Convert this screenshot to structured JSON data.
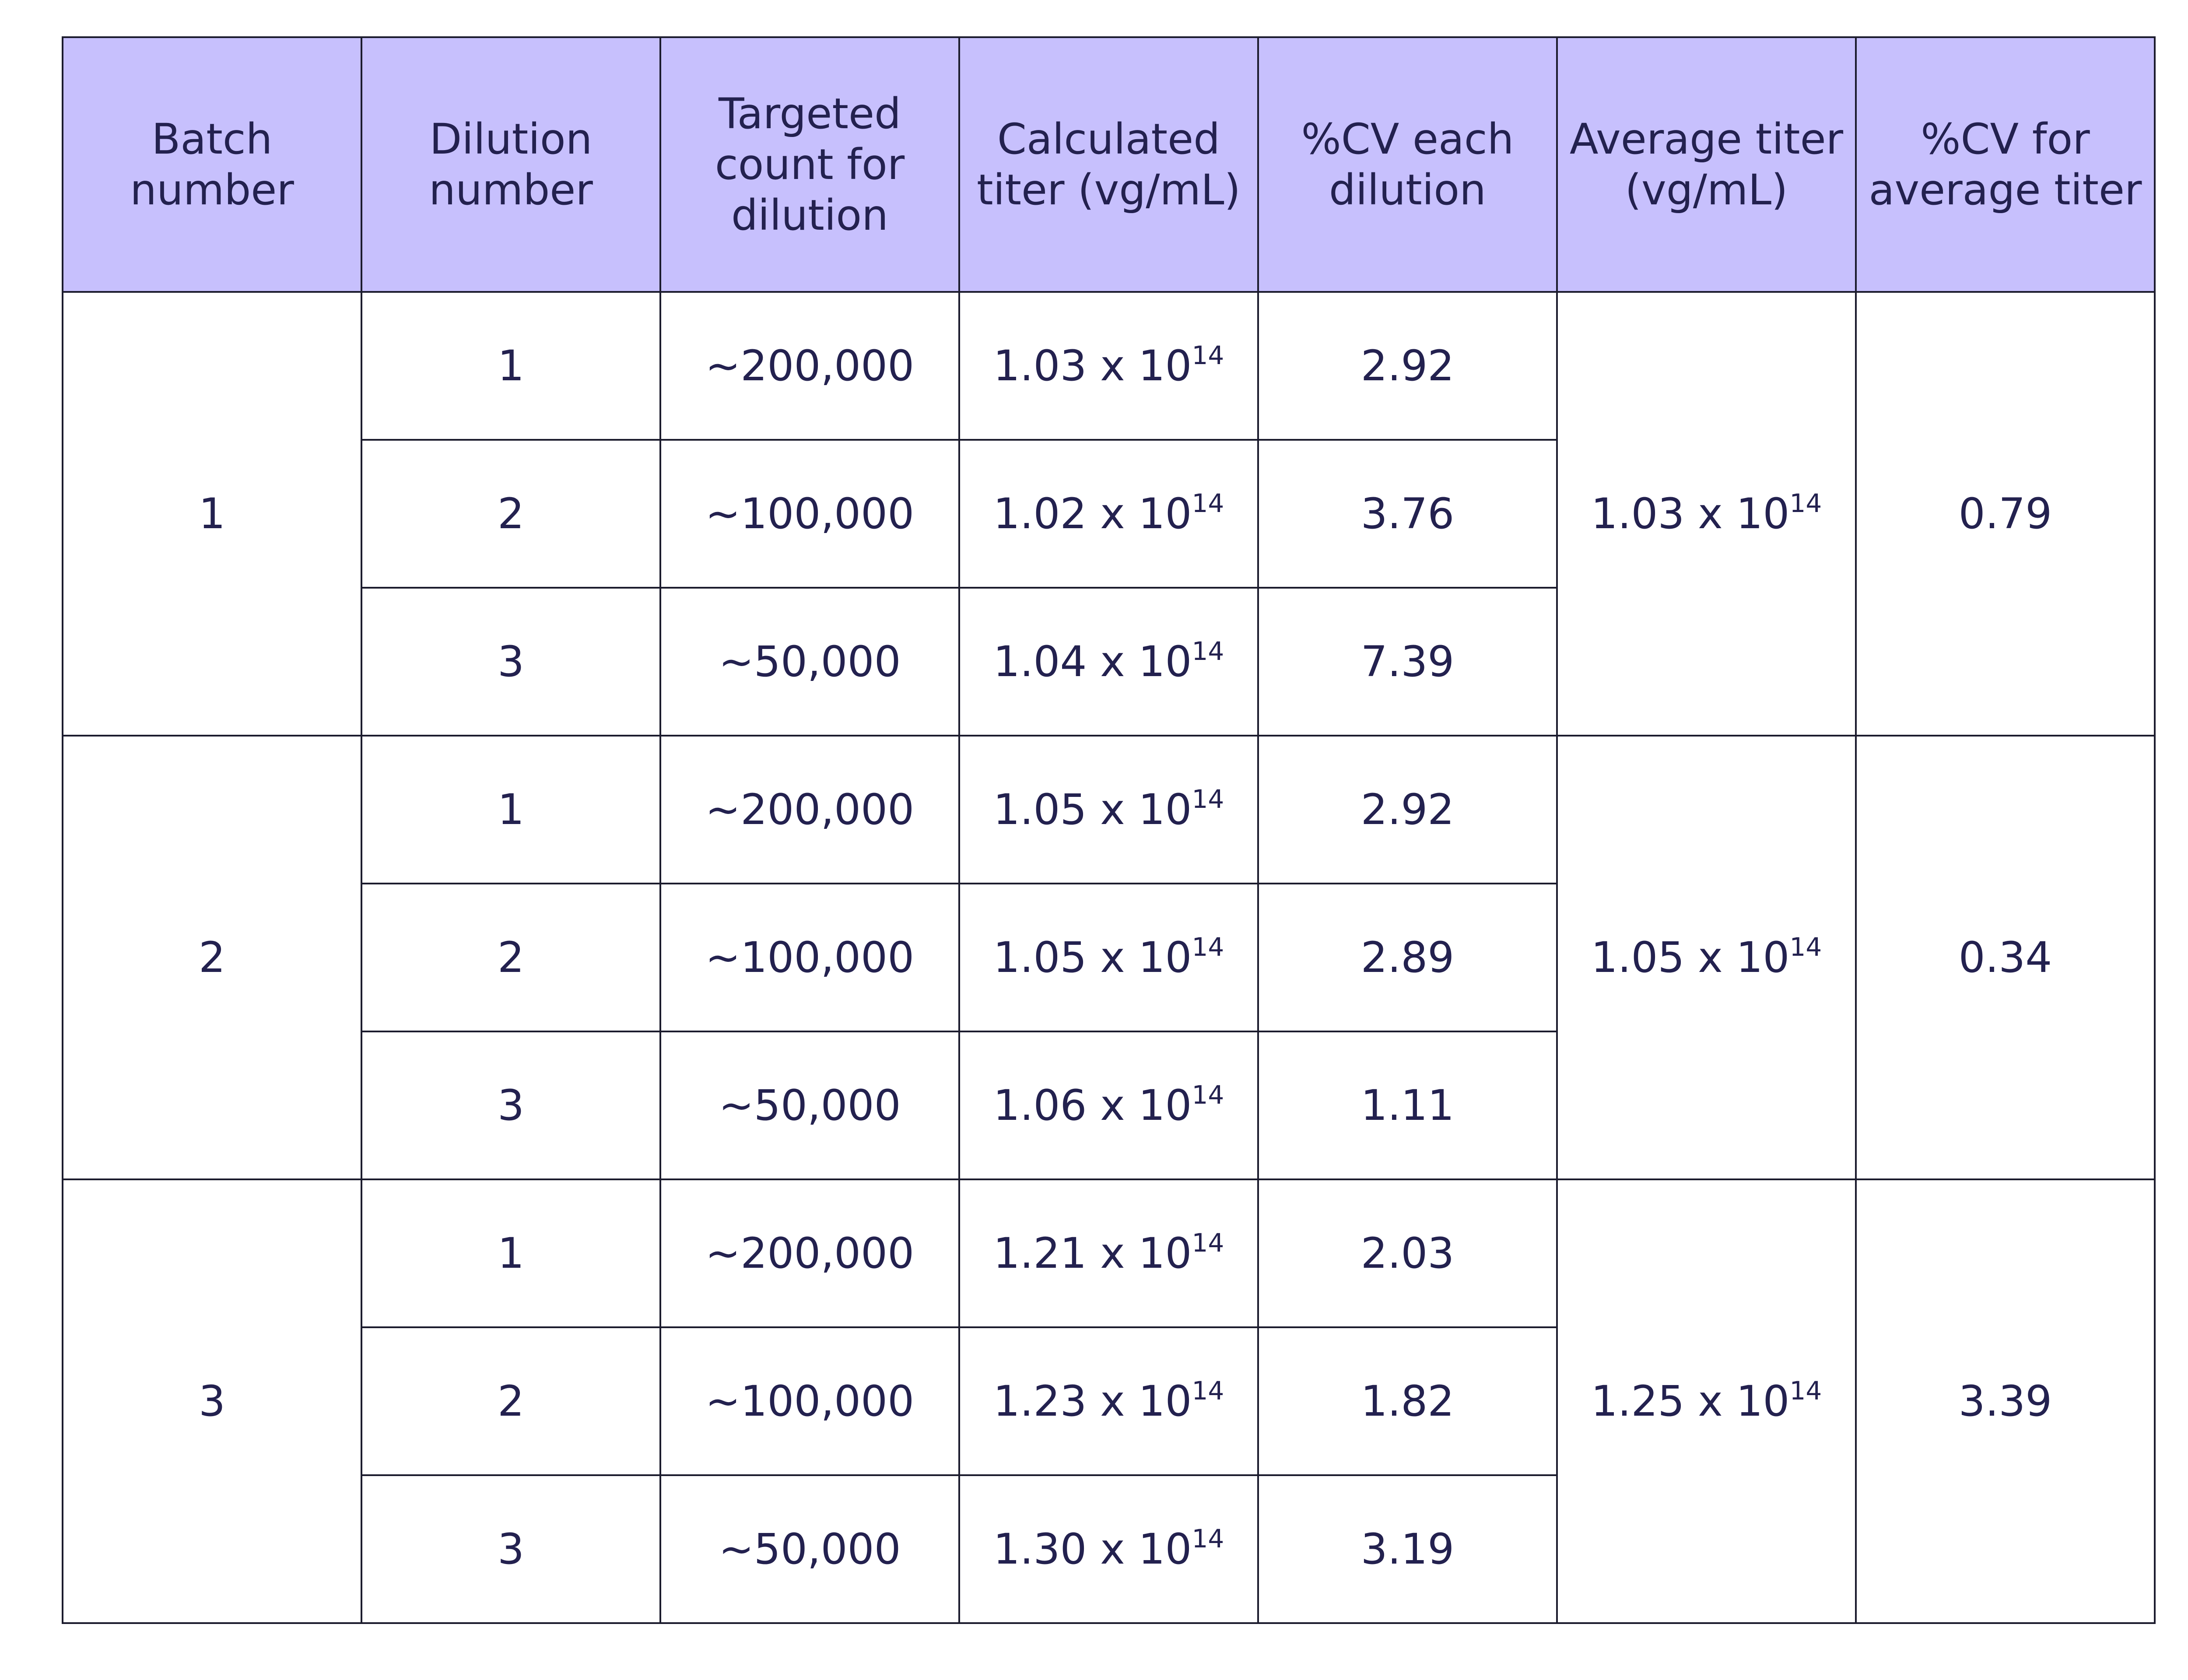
{
  "headers": [
    {
      "lines": [
        "Batch",
        "number"
      ]
    },
    {
      "lines": [
        "Dilution",
        "number"
      ]
    },
    {
      "lines": [
        "Targeted",
        "count for",
        "dilution"
      ]
    },
    {
      "lines": [
        "Calculated",
        "titer (vg/mL)"
      ]
    },
    {
      "lines": [
        "%CV each",
        "dilution"
      ]
    },
    {
      "lines": [
        "Average titer",
        "(vg/mL)"
      ]
    },
    {
      "lines": [
        "%CV for",
        "average titer"
      ]
    }
  ],
  "batches": [
    {
      "batch_number": "1",
      "average_titer": {
        "mantissa": "1.03 x 10",
        "exponent": "14"
      },
      "cv_average": "0.79",
      "dilutions": [
        {
          "dilution_number": "1",
          "targeted_count": "~200,000",
          "titer": {
            "mantissa": "1.03 x 10",
            "exponent": "14"
          },
          "cv": "2.92"
        },
        {
          "dilution_number": "2",
          "targeted_count": "~100,000",
          "titer": {
            "mantissa": "1.02 x 10",
            "exponent": "14"
          },
          "cv": "3.76"
        },
        {
          "dilution_number": "3",
          "targeted_count": "~50,000",
          "titer": {
            "mantissa": "1.04 x 10",
            "exponent": "14"
          },
          "cv": "7.39"
        }
      ]
    },
    {
      "batch_number": "2",
      "average_titer": {
        "mantissa": "1.05 x 10",
        "exponent": "14"
      },
      "cv_average": "0.34",
      "dilutions": [
        {
          "dilution_number": "1",
          "targeted_count": "~200,000",
          "titer": {
            "mantissa": "1.05 x 10",
            "exponent": "14"
          },
          "cv": "2.92"
        },
        {
          "dilution_number": "2",
          "targeted_count": "~100,000",
          "titer": {
            "mantissa": "1.05 x 10",
            "exponent": "14"
          },
          "cv": "2.89"
        },
        {
          "dilution_number": "3",
          "targeted_count": "~50,000",
          "titer": {
            "mantissa": "1.06 x 10",
            "exponent": "14"
          },
          "cv": "1.11"
        }
      ]
    },
    {
      "batch_number": "3",
      "average_titer": {
        "mantissa": "1.25 x 10",
        "exponent": "14"
      },
      "cv_average": "3.39",
      "dilutions": [
        {
          "dilution_number": "1",
          "targeted_count": "~200,000",
          "titer": {
            "mantissa": "1.21 x 10",
            "exponent": "14"
          },
          "cv": "2.03"
        },
        {
          "dilution_number": "2",
          "targeted_count": "~100,000",
          "titer": {
            "mantissa": "1.23 x 10",
            "exponent": "14"
          },
          "cv": "1.82"
        },
        {
          "dilution_number": "3",
          "targeted_count": "~50,000",
          "titer": {
            "mantissa": "1.30 x 10",
            "exponent": "14"
          },
          "cv": "3.19"
        }
      ]
    }
  ],
  "colors": {
    "header_background": "#c7c0fd",
    "text": "#23214f",
    "border": "#1c1c2e",
    "cell_background": "#ffffff"
  }
}
